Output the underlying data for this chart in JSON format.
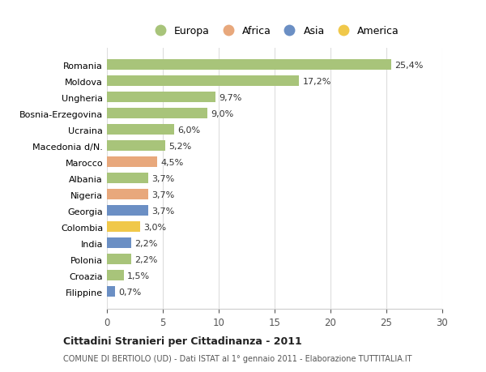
{
  "categories": [
    "Romania",
    "Moldova",
    "Ungheria",
    "Bosnia-Erzegovina",
    "Ucraina",
    "Macedonia d/N.",
    "Marocco",
    "Albania",
    "Nigeria",
    "Georgia",
    "Colombia",
    "India",
    "Polonia",
    "Croazia",
    "Filippine"
  ],
  "values": [
    25.4,
    17.2,
    9.7,
    9.0,
    6.0,
    5.2,
    4.5,
    3.7,
    3.7,
    3.7,
    3.0,
    2.2,
    2.2,
    1.5,
    0.7
  ],
  "labels": [
    "25,4%",
    "17,2%",
    "9,7%",
    "9,0%",
    "6,0%",
    "5,2%",
    "4,5%",
    "3,7%",
    "3,7%",
    "3,7%",
    "3,0%",
    "2,2%",
    "2,2%",
    "1,5%",
    "0,7%"
  ],
  "colors": [
    "#a8c47a",
    "#a8c47a",
    "#a8c47a",
    "#a8c47a",
    "#a8c47a",
    "#a8c47a",
    "#e8a87c",
    "#a8c47a",
    "#e8a87c",
    "#6b8fc4",
    "#f0c84a",
    "#6b8fc4",
    "#a8c47a",
    "#a8c47a",
    "#6b8fc4"
  ],
  "legend_labels": [
    "Europa",
    "Africa",
    "Asia",
    "America"
  ],
  "legend_colors": [
    "#a8c47a",
    "#e8a87c",
    "#6b8fc4",
    "#f0c84a"
  ],
  "title": "Cittadini Stranieri per Cittadinanza - 2011",
  "subtitle": "COMUNE DI BERTIOLO (UD) - Dati ISTAT al 1° gennaio 2011 - Elaborazione TUTTITALIA.IT",
  "xlim": [
    0,
    30
  ],
  "xticks": [
    0,
    5,
    10,
    15,
    20,
    25,
    30
  ],
  "background_color": "#ffffff",
  "grid_color": "#dddddd"
}
